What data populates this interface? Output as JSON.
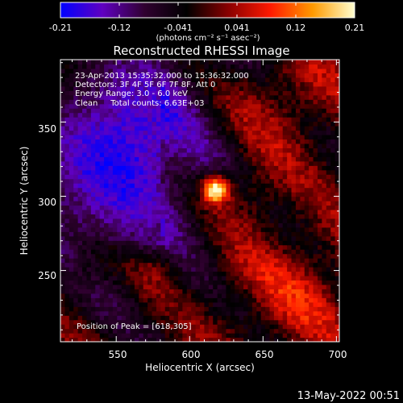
{
  "chart_data": {
    "type": "heatmap",
    "title": "Reconstructed RHESSI Image",
    "xlabel": "Heliocentric X (arcsec)",
    "ylabel": "Heliocentric Y (arcsec)",
    "xlim": [
      512,
      702
    ],
    "ylim": [
      202,
      392
    ],
    "x_ticks": [
      550,
      600,
      650,
      700
    ],
    "y_ticks": [
      250,
      300,
      350
    ],
    "colorbar": {
      "min": -0.21,
      "max": 0.21,
      "ticks": [
        "-0.21",
        "-0.12",
        "-0.041",
        "0.041",
        "0.12",
        "0.21"
      ],
      "unit_label": "(photons cm⁻² s⁻¹ asec⁻²)",
      "colormap": [
        "#0000ff",
        "#6000c0",
        "#300030",
        "#000000",
        "#8a0000",
        "#ff1a00",
        "#ff9a00",
        "#ffffd0"
      ]
    },
    "annotations": {
      "time_range": "23-Apr-2013 15:35:32.000 to 15:36:32.000",
      "detectors": "Detectors: 3F 4F 5F 6F 7F 8F, Att 0",
      "energy_range": "Energy Range: 3.0 - 6.0 keV",
      "clean_counts": "Clean     Total counts: 6.63E+03",
      "peak_position": "Position of Peak = [618,305]"
    },
    "peak": {
      "x": 618,
      "y": 305,
      "value": 0.21
    },
    "grid": false,
    "legend": "none"
  },
  "footer_date": "13-May-2022 00:51"
}
